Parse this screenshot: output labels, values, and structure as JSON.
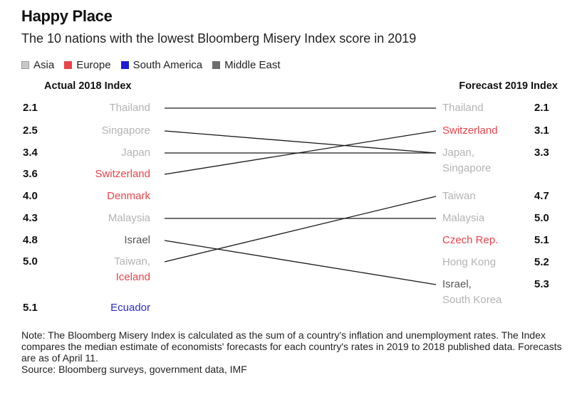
{
  "title": "Happy Place",
  "subtitle": "The 10 nations with the lowest Bloomberg Misery Index score in 2019",
  "legend": [
    {
      "label": "Asia",
      "color": "#c8c8c8"
    },
    {
      "label": "Europe",
      "color": "#e8434a"
    },
    {
      "label": "South America",
      "color": "#1b1bd6"
    },
    {
      "label": "Middle East",
      "color": "#6e6e6e"
    }
  ],
  "colors": {
    "Asia": "#b3b3b3",
    "Europe": "#e8434a",
    "South America": "#2b2bc8",
    "Middle East": "#555555",
    "line": "#1a1a1a",
    "value": "#111111"
  },
  "chart_data": {
    "type": "slope",
    "left_axis_label": "Actual 2018 Index",
    "right_axis_label": "Forecast 2019 Index",
    "left": [
      {
        "value": "2.1",
        "entries": [
          {
            "name": "Thailand",
            "region": "Asia"
          }
        ]
      },
      {
        "value": "2.5",
        "entries": [
          {
            "name": "Singapore",
            "region": "Asia"
          }
        ]
      },
      {
        "value": "3.4",
        "entries": [
          {
            "name": "Japan",
            "region": "Asia"
          }
        ]
      },
      {
        "value": "3.6",
        "entries": [
          {
            "name": "Switzerland",
            "region": "Europe"
          }
        ]
      },
      {
        "value": "4.0",
        "entries": [
          {
            "name": "Denmark",
            "region": "Europe"
          }
        ]
      },
      {
        "value": "4.3",
        "entries": [
          {
            "name": "Malaysia",
            "region": "Asia"
          }
        ]
      },
      {
        "value": "4.8",
        "entries": [
          {
            "name": "Israel",
            "region": "Middle East"
          }
        ]
      },
      {
        "value": "5.0",
        "entries": [
          {
            "name": "Taiwan,",
            "region": "Asia"
          },
          {
            "name": "Iceland",
            "region": "Europe"
          }
        ]
      },
      {
        "value": "5.1",
        "entries": [
          {
            "name": "Ecuador",
            "region": "South America"
          }
        ]
      }
    ],
    "right": [
      {
        "value": "2.1",
        "entries": [
          {
            "name": "Thailand",
            "region": "Asia"
          }
        ]
      },
      {
        "value": "3.1",
        "entries": [
          {
            "name": "Switzerland",
            "region": "Europe"
          }
        ]
      },
      {
        "value": "3.3",
        "entries": [
          {
            "name": "Japan,",
            "region": "Asia"
          },
          {
            "name": "Singapore",
            "region": "Asia"
          }
        ]
      },
      {
        "value": "4.7",
        "entries": [
          {
            "name": "Taiwan",
            "region": "Asia"
          }
        ]
      },
      {
        "value": "5.0",
        "entries": [
          {
            "name": "Malaysia",
            "region": "Asia"
          }
        ]
      },
      {
        "value": "5.1",
        "entries": [
          {
            "name": "Czech Rep.",
            "region": "Europe"
          }
        ]
      },
      {
        "value": "5.2",
        "entries": [
          {
            "name": "Hong Kong",
            "region": "Asia"
          }
        ]
      },
      {
        "value": "5.3",
        "entries": [
          {
            "name": "Israel,",
            "region": "Middle East"
          },
          {
            "name": "South Korea",
            "region": "Asia"
          }
        ]
      }
    ],
    "links": [
      {
        "country": "Thailand",
        "from": 2.1,
        "to": 2.1
      },
      {
        "country": "Singapore",
        "from": 2.5,
        "to": 3.3
      },
      {
        "country": "Japan",
        "from": 3.4,
        "to": 3.3
      },
      {
        "country": "Switzerland",
        "from": 3.6,
        "to": 3.1
      },
      {
        "country": "Malaysia",
        "from": 4.3,
        "to": 5.0
      },
      {
        "country": "Israel",
        "from": 4.8,
        "to": 5.3
      },
      {
        "country": "Taiwan",
        "from": 5.0,
        "to": 4.7
      }
    ]
  },
  "note": "Note: The Bloomberg Misery Index is calculated as the sum of a country's inflation and unemployment rates. The Index compares the median estimate of economists' forecasts for each country's rates in 2019 to 2018 published data. Forecasts are as of April 11.",
  "source": "Source: Bloomberg surveys, government data, IMF"
}
